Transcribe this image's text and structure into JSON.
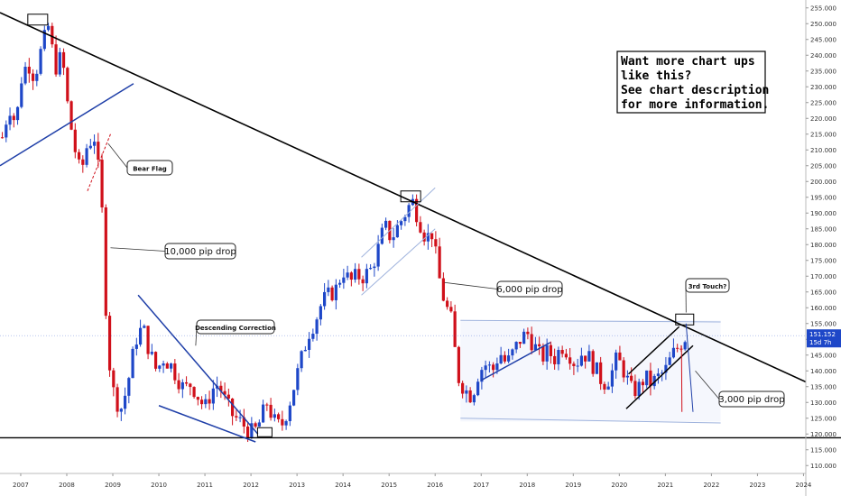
{
  "chart_data": {
    "type": "candlestick",
    "x_range": [
      2006.55,
      2024.05
    ],
    "y_range": [
      107.5,
      257.5
    ],
    "y_ticks": [
      "255.000",
      "250.000",
      "245.000",
      "240.000",
      "235.000",
      "230.000",
      "225.000",
      "220.000",
      "215.000",
      "210.000",
      "205.000",
      "200.000",
      "195.000",
      "190.000",
      "185.000",
      "180.000",
      "175.000",
      "170.000",
      "165.000",
      "160.000",
      "155.000",
      "150.000",
      "145.000",
      "140.000",
      "135.000",
      "130.000",
      "125.000",
      "120.000",
      "115.000",
      "110.000"
    ],
    "x_ticks": [
      "2007",
      "2008",
      "2009",
      "2010",
      "2011",
      "2012",
      "2013",
      "2014",
      "2015",
      "2016",
      "2017",
      "2018",
      "2019",
      "2020",
      "2021",
      "2022",
      "2023",
      "2024"
    ],
    "last_price": {
      "value": 151.152,
      "label": "151.152",
      "sublabel": "15d 7h"
    },
    "colors": {
      "up": "#1e47c8",
      "down": "#d0101a",
      "trend": "#000000",
      "channel": "#1f3fa8",
      "box_fill": "#eef2fb"
    },
    "candle_path": [
      [
        2006.6,
        214
      ],
      [
        2006.75,
        224
      ],
      [
        2006.9,
        218
      ],
      [
        2007.0,
        232
      ],
      [
        2007.15,
        238
      ],
      [
        2007.3,
        233
      ],
      [
        2007.45,
        242
      ],
      [
        2007.6,
        249
      ],
      [
        2007.75,
        236
      ],
      [
        2007.9,
        240
      ],
      [
        2008.0,
        226
      ],
      [
        2008.15,
        212
      ],
      [
        2008.3,
        202
      ],
      [
        2008.45,
        212
      ],
      [
        2008.6,
        214
      ],
      [
        2008.75,
        196
      ],
      [
        2008.85,
        160
      ],
      [
        2008.95,
        138
      ],
      [
        2009.05,
        131
      ],
      [
        2009.2,
        128
      ],
      [
        2009.35,
        138
      ],
      [
        2009.5,
        150
      ],
      [
        2009.65,
        154
      ],
      [
        2009.8,
        146
      ],
      [
        2009.95,
        140
      ],
      [
        2010.1,
        144
      ],
      [
        2010.25,
        142
      ],
      [
        2010.4,
        138
      ],
      [
        2010.55,
        134
      ],
      [
        2010.7,
        136
      ],
      [
        2010.85,
        132
      ],
      [
        2011.0,
        128
      ],
      [
        2011.15,
        134
      ],
      [
        2011.3,
        136
      ],
      [
        2011.45,
        130
      ],
      [
        2011.6,
        126
      ],
      [
        2011.75,
        124
      ],
      [
        2011.9,
        122
      ],
      [
        2012.05,
        120
      ],
      [
        2012.2,
        124
      ],
      [
        2012.35,
        130
      ],
      [
        2012.5,
        124
      ],
      [
        2012.65,
        122
      ],
      [
        2012.8,
        128
      ],
      [
        2012.95,
        136
      ],
      [
        2013.1,
        144
      ],
      [
        2013.25,
        152
      ],
      [
        2013.4,
        156
      ],
      [
        2013.55,
        162
      ],
      [
        2013.7,
        164
      ],
      [
        2013.85,
        166
      ],
      [
        2014.0,
        172
      ],
      [
        2014.15,
        168
      ],
      [
        2014.3,
        170
      ],
      [
        2014.45,
        170
      ],
      [
        2014.6,
        172
      ],
      [
        2014.75,
        178
      ],
      [
        2014.9,
        186
      ],
      [
        2015.05,
        182
      ],
      [
        2015.2,
        186
      ],
      [
        2015.35,
        190
      ],
      [
        2015.5,
        194
      ],
      [
        2015.65,
        188
      ],
      [
        2015.8,
        182
      ],
      [
        2015.95,
        184
      ],
      [
        2016.05,
        172
      ],
      [
        2016.2,
        162
      ],
      [
        2016.35,
        156
      ],
      [
        2016.5,
        138
      ],
      [
        2016.65,
        134
      ],
      [
        2016.8,
        132
      ],
      [
        2016.95,
        140
      ],
      [
        2017.1,
        142
      ],
      [
        2017.25,
        140
      ],
      [
        2017.4,
        146
      ],
      [
        2017.55,
        142
      ],
      [
        2017.7,
        146
      ],
      [
        2017.85,
        150
      ],
      [
        2018.0,
        152
      ],
      [
        2018.15,
        148
      ],
      [
        2018.3,
        144
      ],
      [
        2018.45,
        146
      ],
      [
        2018.6,
        144
      ],
      [
        2018.75,
        148
      ],
      [
        2018.9,
        146
      ],
      [
        2019.05,
        142
      ],
      [
        2019.2,
        146
      ],
      [
        2019.35,
        144
      ],
      [
        2019.5,
        140
      ],
      [
        2019.65,
        136
      ],
      [
        2019.8,
        138
      ],
      [
        2019.95,
        144
      ],
      [
        2020.1,
        140
      ],
      [
        2020.25,
        134
      ],
      [
        2020.4,
        134
      ],
      [
        2020.55,
        138
      ],
      [
        2020.7,
        136
      ],
      [
        2020.85,
        138
      ],
      [
        2021.0,
        140
      ],
      [
        2021.15,
        145
      ],
      [
        2021.3,
        148
      ],
      [
        2021.45,
        151.15
      ]
    ],
    "annotations": {
      "bear_flag": "Bear Flag",
      "drop_10000": "10,000 pip drop",
      "descending_correction": "Descending Correction",
      "drop_6000": "6,000 pip drop",
      "third_touch": "3rd Touch?",
      "drop_3000": "3,000 pip drop"
    },
    "promo": [
      "Want more chart ups",
      "like this?",
      "See chart description",
      "for more information."
    ]
  }
}
